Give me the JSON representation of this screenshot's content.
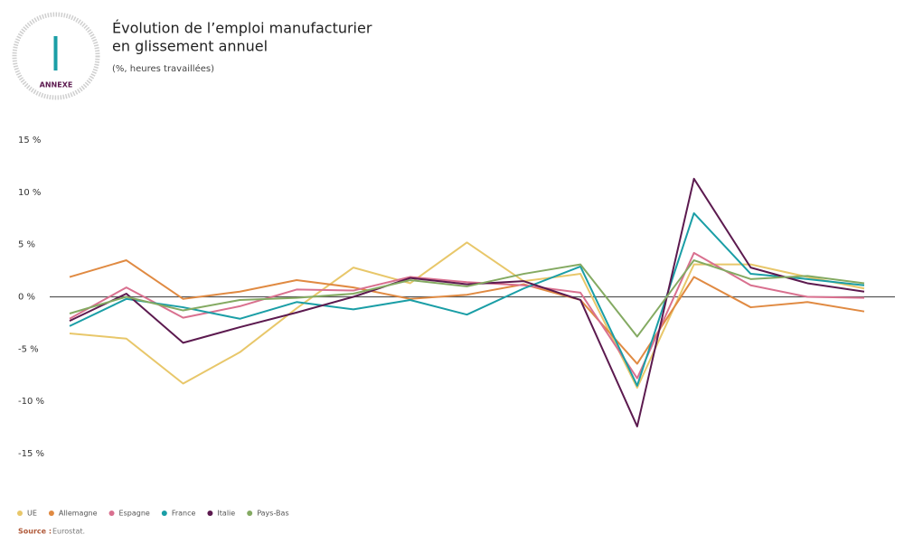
{
  "chart_data": {
    "type": "line",
    "badge": "ANNEXE",
    "title": [
      "Évolution de l’emploi manufacturier",
      "en glissement annuel"
    ],
    "subtitle": "(%, heures travaillées)",
    "source": {
      "label": "Source :",
      "text": "Eurostat."
    },
    "categories": [
      null,
      null,
      null,
      null,
      null,
      null,
      null,
      null,
      null,
      null,
      null,
      null,
      null,
      null,
      null
    ],
    "ylim": [
      -15,
      15
    ],
    "yticks": [
      {
        "value": 15,
        "label": "15 %"
      },
      {
        "value": 10,
        "label": "10 %"
      },
      {
        "value": 5,
        "label": "5 %"
      },
      {
        "value": 0,
        "label": "0 %"
      },
      {
        "value": -5,
        "label": "-5 %"
      },
      {
        "value": -10,
        "label": "-10 %"
      },
      {
        "value": -15,
        "label": "-15 %"
      }
    ],
    "legend": "bottom-left",
    "series": [
      {
        "name": "UE",
        "color": "#e8c76a",
        "values": [
          -3.5,
          -4.0,
          -8.3,
          -5.3,
          -1.1,
          2.8,
          1.3,
          5.2,
          1.5,
          2.2,
          -8.7,
          3.1,
          3.1,
          1.9,
          0.8
        ]
      },
      {
        "name": "Allemagne",
        "color": "#e08a42",
        "values": [
          1.9,
          3.5,
          -0.2,
          0.5,
          1.6,
          0.9,
          -0.2,
          0.2,
          1.2,
          -0.3,
          -6.4,
          1.9,
          -1.0,
          -0.5,
          -1.4
        ]
      },
      {
        "name": "Espagne",
        "color": "#d9708f",
        "values": [
          -2.1,
          0.9,
          -2.0,
          -0.9,
          0.7,
          0.6,
          1.9,
          1.4,
          1.1,
          0.4,
          -7.8,
          4.2,
          1.1,
          0,
          -0.1
        ]
      },
      {
        "name": "France",
        "color": "#1a9ea6",
        "values": [
          -2.8,
          -0.2,
          -1.0,
          -2.1,
          -0.5,
          -1.2,
          -0.3,
          -1.7,
          0.8,
          2.9,
          -8.5,
          8.0,
          2.2,
          1.7,
          1.1
        ]
      },
      {
        "name": "Italie",
        "color": "#5c1a4f",
        "values": [
          -2.3,
          0.3,
          -4.4,
          -2.9,
          -1.5,
          0,
          1.8,
          1.2,
          1.5,
          -0.3,
          -12.4,
          11.3,
          2.8,
          1.3,
          0.5
        ]
      },
      {
        "name": "Pays-Bas",
        "color": "#84aa62",
        "values": [
          -1.6,
          0,
          -1.3,
          -0.3,
          -0.1,
          0.3,
          1.6,
          1.0,
          2.2,
          3.1,
          -3.8,
          3.5,
          1.7,
          2.0,
          1.3
        ]
      }
    ]
  }
}
